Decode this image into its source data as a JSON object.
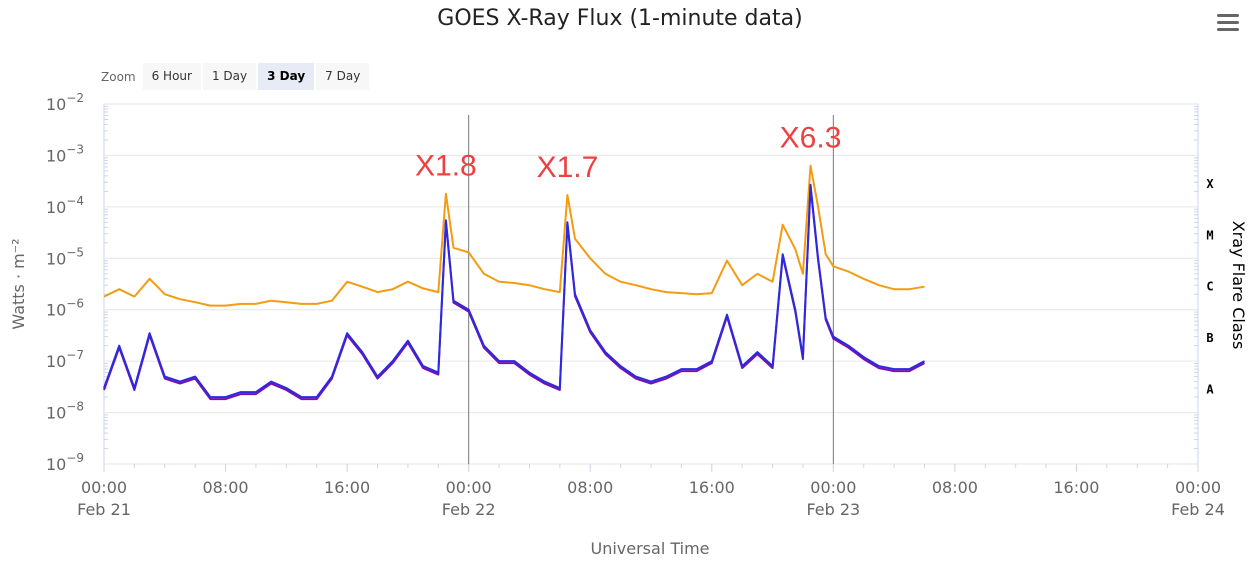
{
  "title": "GOES X-Ray Flux (1-minute data)",
  "menu_icon": "hamburger-menu-icon",
  "zoom": {
    "label": "Zoom",
    "buttons": [
      "6 Hour",
      "1 Day",
      "3 Day",
      "7 Day"
    ],
    "selected": "3 Day"
  },
  "colors": {
    "long_channel": "#f39c12",
    "short_channel_a": "#2a2ae0",
    "short_channel_b": "#7a0fb0",
    "annotation": "#ee4040",
    "grid": "#e6e6e6",
    "axis": "#ccd6eb"
  },
  "chart_data": {
    "type": "line",
    "title": "GOES X-Ray Flux (1-minute data)",
    "xlabel": "Universal Time",
    "ylabel": "Watts · m⁻²",
    "ylabel_right": "Xray Flare Class",
    "y_scale": "log",
    "ylim": [
      1e-09,
      0.01
    ],
    "y_ticks": [
      {
        "value": 1e-09,
        "base": "10",
        "exp": "−9"
      },
      {
        "value": 1e-08,
        "base": "10",
        "exp": "−8"
      },
      {
        "value": 1e-07,
        "base": "10",
        "exp": "−7"
      },
      {
        "value": 1e-06,
        "base": "10",
        "exp": "−6"
      },
      {
        "value": 1e-05,
        "base": "10",
        "exp": "−5"
      },
      {
        "value": 0.0001,
        "base": "10",
        "exp": "−4"
      },
      {
        "value": 0.001,
        "base": "10",
        "exp": "−3"
      },
      {
        "value": 0.01,
        "base": "10",
        "exp": "−2"
      }
    ],
    "xlim": [
      "2024-02-21T00:00",
      "2024-02-24T00:00"
    ],
    "x_ticks": [
      {
        "time": "2024-02-21T00:00",
        "label": "00:00",
        "date": "Feb 21"
      },
      {
        "time": "2024-02-21T08:00",
        "label": "08:00",
        "date": ""
      },
      {
        "time": "2024-02-21T16:00",
        "label": "16:00",
        "date": ""
      },
      {
        "time": "2024-02-22T00:00",
        "label": "00:00",
        "date": "Feb 22"
      },
      {
        "time": "2024-02-22T08:00",
        "label": "08:00",
        "date": ""
      },
      {
        "time": "2024-02-22T16:00",
        "label": "16:00",
        "date": ""
      },
      {
        "time": "2024-02-23T00:00",
        "label": "00:00",
        "date": "Feb 23"
      },
      {
        "time": "2024-02-23T08:00",
        "label": "08:00",
        "date": ""
      },
      {
        "time": "2024-02-23T16:00",
        "label": "16:00",
        "date": ""
      },
      {
        "time": "2024-02-24T00:00",
        "label": "00:00",
        "date": "Feb 24"
      }
    ],
    "flare_classes": [
      {
        "label": "X",
        "value": 0.0001
      },
      {
        "label": "M",
        "value": 1e-05
      },
      {
        "label": "C",
        "value": 1e-06
      },
      {
        "label": "B",
        "value": 1e-07
      },
      {
        "label": "A",
        "value": 1e-08
      }
    ],
    "day_boundaries": [
      "2024-02-22T00:00",
      "2024-02-23T00:00"
    ],
    "annotations": [
      {
        "text": "X1.8",
        "time": "2024-02-21T22:30",
        "value": 0.00018
      },
      {
        "text": "X1.7",
        "time": "2024-02-22T06:30",
        "value": 0.00017
      },
      {
        "text": "X6.3",
        "time": "2024-02-22T22:30",
        "value": 0.00063
      }
    ],
    "series": [
      {
        "channel": "long",
        "x": [
          "2024-02-21T00:00",
          "2024-02-21T01:00",
          "2024-02-21T02:00",
          "2024-02-21T03:00",
          "2024-02-21T04:00",
          "2024-02-21T05:00",
          "2024-02-21T06:00",
          "2024-02-21T07:00",
          "2024-02-21T08:00",
          "2024-02-21T09:00",
          "2024-02-21T10:00",
          "2024-02-21T11:00",
          "2024-02-21T12:00",
          "2024-02-21T13:00",
          "2024-02-21T14:00",
          "2024-02-21T15:00",
          "2024-02-21T16:00",
          "2024-02-21T17:00",
          "2024-02-21T18:00",
          "2024-02-21T19:00",
          "2024-02-21T20:00",
          "2024-02-21T21:00",
          "2024-02-21T22:00",
          "2024-02-21T22:30",
          "2024-02-21T23:00",
          "2024-02-22T00:00",
          "2024-02-22T01:00",
          "2024-02-22T02:00",
          "2024-02-22T03:00",
          "2024-02-22T04:00",
          "2024-02-22T05:00",
          "2024-02-22T06:00",
          "2024-02-22T06:30",
          "2024-02-22T07:00",
          "2024-02-22T08:00",
          "2024-02-22T09:00",
          "2024-02-22T10:00",
          "2024-02-22T11:00",
          "2024-02-22T12:00",
          "2024-02-22T13:00",
          "2024-02-22T14:00",
          "2024-02-22T15:00",
          "2024-02-22T16:00",
          "2024-02-22T17:00",
          "2024-02-22T18:00",
          "2024-02-22T19:00",
          "2024-02-22T20:00",
          "2024-02-22T20:40",
          "2024-02-22T21:30",
          "2024-02-22T22:00",
          "2024-02-22T22:30",
          "2024-02-22T23:00",
          "2024-02-22T23:30",
          "2024-02-23T00:00",
          "2024-02-23T01:00",
          "2024-02-23T02:00",
          "2024-02-23T03:00",
          "2024-02-23T04:00",
          "2024-02-23T05:00",
          "2024-02-23T06:00"
        ],
        "values": [
          1.8e-06,
          2.5e-06,
          1.8e-06,
          4e-06,
          2e-06,
          1.6e-06,
          1.4e-06,
          1.2e-06,
          1.2e-06,
          1.3e-06,
          1.3e-06,
          1.5e-06,
          1.4e-06,
          1.3e-06,
          1.3e-06,
          1.5e-06,
          3.5e-06,
          2.8e-06,
          2.2e-06,
          2.5e-06,
          3.5e-06,
          2.6e-06,
          2.2e-06,
          0.00018,
          1.6e-05,
          1.3e-05,
          5e-06,
          3.5e-06,
          3.3e-06,
          3e-06,
          2.5e-06,
          2.2e-06,
          0.00017,
          2.4e-05,
          1e-05,
          5e-06,
          3.5e-06,
          3e-06,
          2.5e-06,
          2.2e-06,
          2.1e-06,
          2e-06,
          2.1e-06,
          9e-06,
          3e-06,
          5e-06,
          3.5e-06,
          4.5e-05,
          1.5e-05,
          5e-06,
          0.00063,
          0.0001,
          1.2e-05,
          7e-06,
          5.5e-06,
          4e-06,
          3e-06,
          2.5e-06,
          2.5e-06,
          2.8e-06
        ]
      },
      {
        "channel": "short",
        "x": [
          "2024-02-21T00:00",
          "2024-02-21T01:00",
          "2024-02-21T02:00",
          "2024-02-21T03:00",
          "2024-02-21T04:00",
          "2024-02-21T05:00",
          "2024-02-21T06:00",
          "2024-02-21T07:00",
          "2024-02-21T08:00",
          "2024-02-21T09:00",
          "2024-02-21T10:00",
          "2024-02-21T11:00",
          "2024-02-21T12:00",
          "2024-02-21T13:00",
          "2024-02-21T14:00",
          "2024-02-21T15:00",
          "2024-02-21T16:00",
          "2024-02-21T17:00",
          "2024-02-21T18:00",
          "2024-02-21T19:00",
          "2024-02-21T20:00",
          "2024-02-21T21:00",
          "2024-02-21T22:00",
          "2024-02-21T22:30",
          "2024-02-21T23:00",
          "2024-02-22T00:00",
          "2024-02-22T01:00",
          "2024-02-22T02:00",
          "2024-02-22T03:00",
          "2024-02-22T04:00",
          "2024-02-22T05:00",
          "2024-02-22T06:00",
          "2024-02-22T06:30",
          "2024-02-22T07:00",
          "2024-02-22T08:00",
          "2024-02-22T09:00",
          "2024-02-22T10:00",
          "2024-02-22T11:00",
          "2024-02-22T12:00",
          "2024-02-22T13:00",
          "2024-02-22T14:00",
          "2024-02-22T15:00",
          "2024-02-22T16:00",
          "2024-02-22T17:00",
          "2024-02-22T18:00",
          "2024-02-22T19:00",
          "2024-02-22T20:00",
          "2024-02-22T20:40",
          "2024-02-22T21:30",
          "2024-02-22T22:00",
          "2024-02-22T22:30",
          "2024-02-22T23:00",
          "2024-02-22T23:30",
          "2024-02-23T00:00",
          "2024-02-23T01:00",
          "2024-02-23T02:00",
          "2024-02-23T03:00",
          "2024-02-23T04:00",
          "2024-02-23T05:00",
          "2024-02-23T06:00"
        ],
        "values": [
          3e-08,
          2e-07,
          3e-08,
          3.5e-07,
          5e-08,
          4e-08,
          5e-08,
          2e-08,
          2e-08,
          2.5e-08,
          2.5e-08,
          4e-08,
          3e-08,
          2e-08,
          2e-08,
          5e-08,
          3.5e-07,
          1.5e-07,
          5e-08,
          1e-07,
          2.5e-07,
          8e-08,
          6e-08,
          5.5e-05,
          1.5e-06,
          1e-06,
          2e-07,
          1e-07,
          1e-07,
          6e-08,
          4e-08,
          3e-08,
          5e-05,
          2e-06,
          4e-07,
          1.5e-07,
          8e-08,
          5e-08,
          4e-08,
          5e-08,
          7e-08,
          7e-08,
          1e-07,
          8e-07,
          8e-08,
          1.5e-07,
          8e-08,
          1.2e-05,
          1e-06,
          1.2e-07,
          0.00027,
          1e-05,
          7e-07,
          3e-07,
          2e-07,
          1.2e-07,
          8e-08,
          7e-08,
          7e-08,
          1e-07
        ]
      }
    ]
  }
}
